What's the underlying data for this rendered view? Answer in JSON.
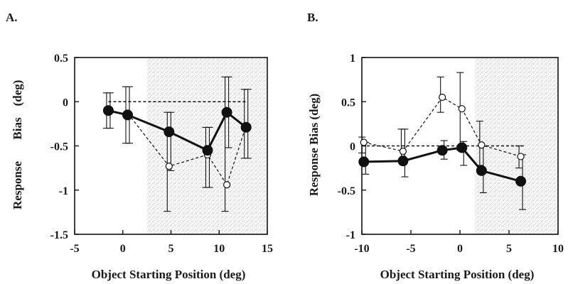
{
  "chart_data": [
    {
      "type": "line",
      "panel_label": "A.",
      "xlabel": "Object Starting Position (deg)",
      "ylabel_parts": [
        "Response",
        "Bias",
        "(deg)"
      ],
      "xlim": [
        -5,
        15
      ],
      "ylim": [
        -1.5,
        0.5
      ],
      "x_ticks": [
        -5,
        0,
        5,
        10,
        15
      ],
      "y_ticks": [
        0.5,
        0,
        -0.5,
        -1,
        -1.5
      ],
      "x_tick_labels": [
        "-5",
        "0",
        "5",
        "10",
        "15"
      ],
      "y_tick_labels": [
        "0.5",
        "0",
        "-0.5",
        "-1",
        "-1.5"
      ],
      "shaded_region_x": [
        2.5,
        15
      ],
      "reference_line": {
        "style": "dashed",
        "x": [
          -1.5,
          13
        ],
        "y": 0
      },
      "series": [
        {
          "style": "solid line, filled circles",
          "x": [
            -1.5,
            0.5,
            4.8,
            8.8,
            10.8,
            12.8
          ],
          "y": [
            -0.1,
            -0.15,
            -0.34,
            -0.55,
            -0.12,
            -0.29
          ],
          "err_lo": [
            -0.3,
            -0.47,
            -0.78,
            -0.97,
            -0.52,
            -0.64
          ],
          "err_hi": [
            0.1,
            0.17,
            -0.12,
            -0.29,
            0.28,
            0.14
          ]
        },
        {
          "style": "dashed line, open circles",
          "x": [
            -1.5,
            0.5,
            4.8,
            8.8,
            10.8,
            12.8
          ],
          "y": [
            -0.12,
            -0.13,
            -0.73,
            -0.6,
            -0.94,
            -0.27
          ],
          "err_lo": [
            -0.3,
            -0.47,
            -1.24,
            -0.97,
            -1.24,
            -0.64
          ],
          "err_hi": [
            0.1,
            0.17,
            -0.12,
            -0.29,
            0.28,
            0.14
          ]
        }
      ]
    },
    {
      "type": "line",
      "panel_label": "B.",
      "xlabel": "Object Starting Position (deg)",
      "ylabel": "Response Bias (deg)",
      "xlim": [
        -10,
        10
      ],
      "ylim": [
        -1,
        1
      ],
      "x_ticks": [
        -10,
        -5,
        0,
        5,
        10
      ],
      "y_ticks": [
        1,
        0.5,
        0,
        -0.5,
        -1
      ],
      "x_tick_labels": [
        "-10",
        "-5",
        "0",
        "5",
        "10"
      ],
      "y_tick_labels": [
        "1",
        "0.5",
        "0",
        "-0.5",
        "-1"
      ],
      "shaded_region_x": [
        1.5,
        10
      ],
      "reference_line": {
        "style": "dashed",
        "x": [
          -10,
          6.5
        ],
        "y": 0
      },
      "series": [
        {
          "style": "solid line, filled circles",
          "x": [
            -9.8,
            -5.8,
            -1.8,
            0.2,
            2.2,
            6.2
          ],
          "y": [
            -0.18,
            -0.17,
            -0.05,
            -0.02,
            -0.28,
            -0.4
          ],
          "err_lo": [
            -0.32,
            -0.35,
            -0.15,
            -0.22,
            -0.53,
            -0.72
          ],
          "err_hi": [
            0.04,
            0.19,
            0.06,
            0.05,
            0.0,
            -0.1
          ]
        },
        {
          "style": "dashed line, open circles",
          "x": [
            -9.8,
            -5.8,
            -1.8,
            0.2,
            2.2,
            6.2
          ],
          "y": [
            0.04,
            -0.06,
            0.55,
            0.42,
            0.01,
            -0.12
          ],
          "err_lo": [
            -0.08,
            -0.18,
            0.38,
            -0.05,
            -0.22,
            -0.25
          ],
          "err_hi": [
            0.1,
            0.19,
            0.78,
            0.83,
            0.28,
            0.0
          ]
        }
      ]
    }
  ]
}
